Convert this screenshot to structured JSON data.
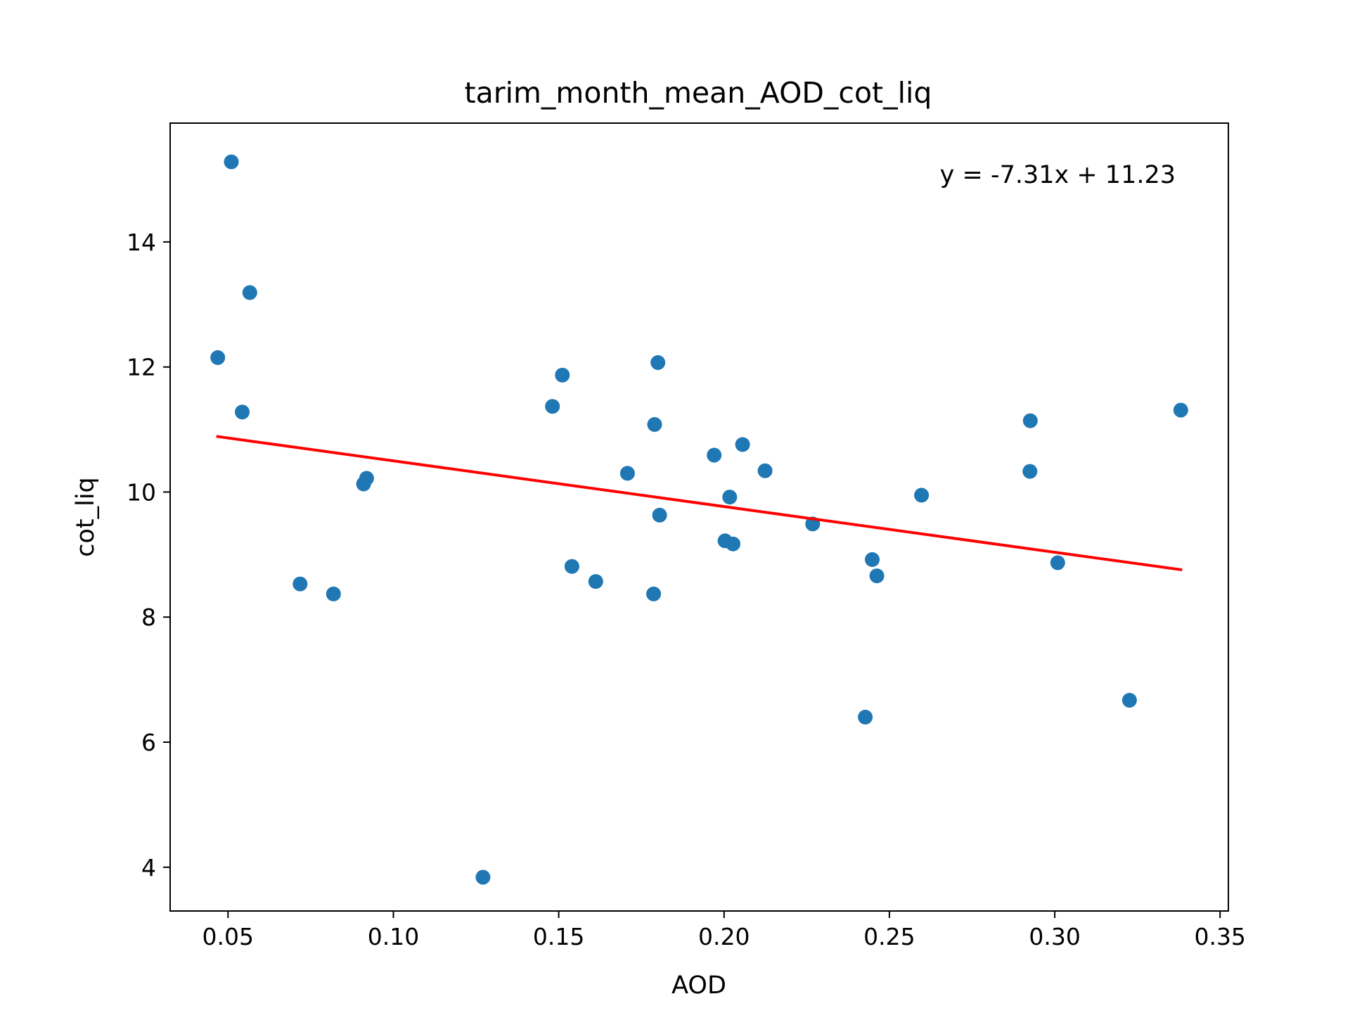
{
  "chart_data": {
    "type": "scatter",
    "title": "tarim_month_mean_AOD_cot_liq",
    "xlabel": "AOD",
    "ylabel": "cot_liq",
    "xlim": [
      0.0325,
      0.3525
    ],
    "ylim": [
      3.3,
      15.9
    ],
    "xticks": [
      0.05,
      0.1,
      0.15,
      0.2,
      0.25,
      0.3,
      0.35
    ],
    "xtick_labels": [
      "0.05",
      "0.10",
      "0.15",
      "0.20",
      "0.25",
      "0.30",
      "0.35"
    ],
    "yticks": [
      4,
      6,
      8,
      10,
      12,
      14
    ],
    "ytick_labels": [
      "4",
      "6",
      "8",
      "10",
      "12",
      "14"
    ],
    "grid": false,
    "annotation": "y = -7.31x + 11.23",
    "colors": {
      "points": "#1f77b4",
      "fit_line": "#ff0000",
      "axes": "#000000"
    },
    "series": [
      {
        "type": "scatter",
        "x": [
          0.0469,
          0.051,
          0.0543,
          0.0566,
          0.0718,
          0.0819,
          0.091,
          0.0919,
          0.1271,
          0.1481,
          0.1511,
          0.154,
          0.1612,
          0.1708,
          0.1787,
          0.179,
          0.18,
          0.1805,
          0.197,
          0.2003,
          0.2017,
          0.2027,
          0.2056,
          0.2124,
          0.2268,
          0.2427,
          0.2448,
          0.2462,
          0.2597,
          0.2925,
          0.2926,
          0.3009,
          0.3226,
          0.3381
        ],
        "y": [
          12.15,
          15.28,
          11.28,
          13.19,
          8.53,
          8.37,
          10.13,
          10.22,
          3.84,
          11.37,
          11.87,
          8.81,
          8.57,
          10.3,
          8.37,
          11.08,
          12.07,
          9.63,
          10.59,
          9.22,
          9.92,
          9.17,
          10.76,
          10.34,
          9.49,
          6.4,
          8.92,
          8.66,
          9.95,
          10.33,
          11.14,
          8.87,
          6.67,
          11.31
        ]
      },
      {
        "type": "line",
        "x": [
          0.0469,
          0.3381
        ],
        "y": [
          10.887,
          8.759
        ]
      }
    ]
  }
}
